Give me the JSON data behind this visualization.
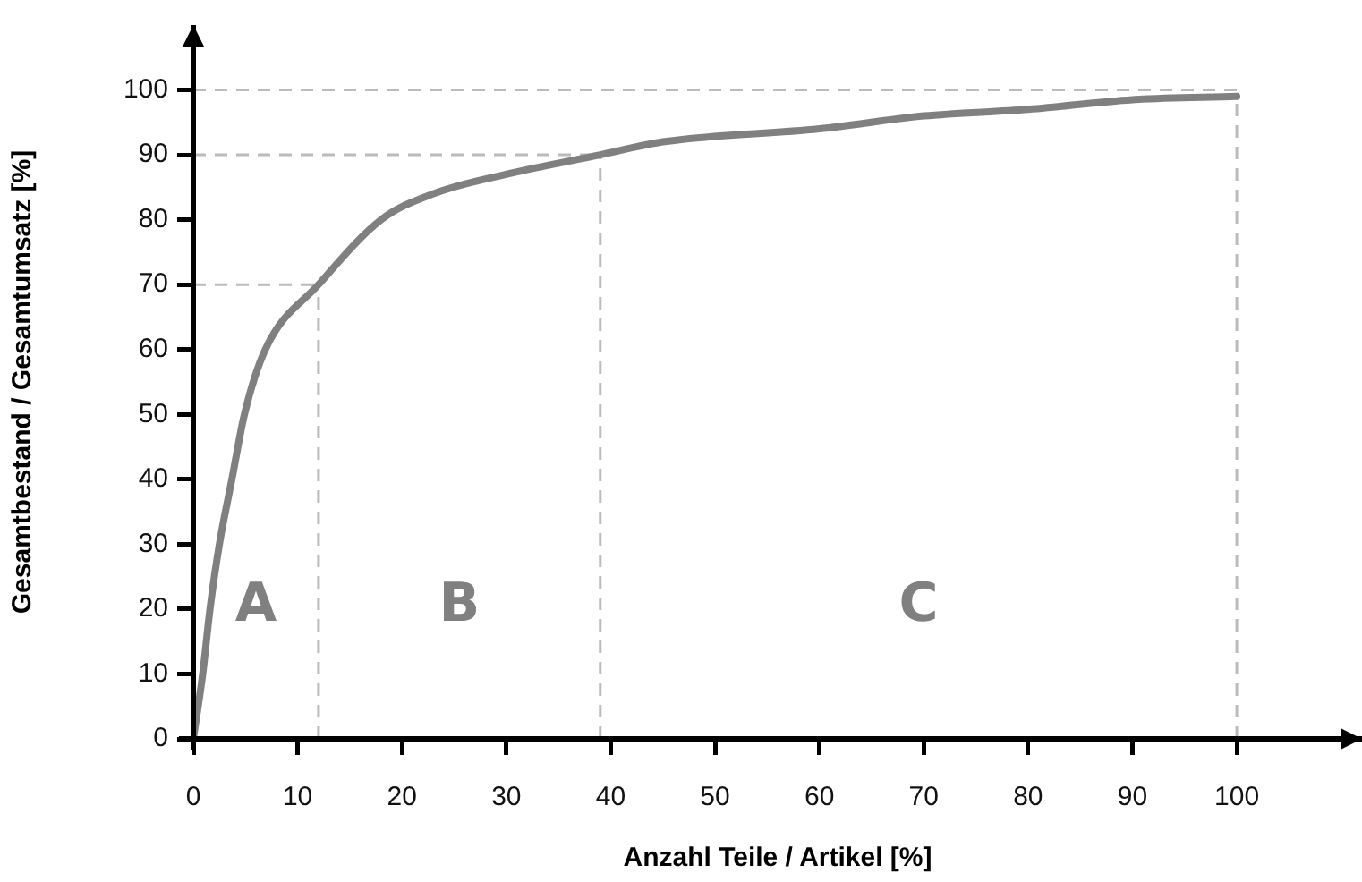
{
  "chart_data": {
    "type": "line",
    "xlabel": "Anzahl Teile / Artikel [%]",
    "ylabel": "Gesamtbestand / Gesamtumsatz [%]",
    "x": [
      0,
      0.9,
      1.6,
      2.5,
      3.7,
      4.9,
      6.9,
      12,
      18,
      23,
      30,
      39,
      45,
      60,
      70,
      80,
      90,
      100
    ],
    "series": [
      {
        "color": "#808080",
        "values": [
          0,
          10,
          20,
          30,
          40,
          50,
          60,
          70,
          80,
          84,
          87,
          90,
          92,
          94,
          96,
          97,
          98.5,
          99
        ]
      }
    ],
    "marker": "none",
    "line_style": "solid",
    "xlim": [
      0,
      112
    ],
    "ylim": [
      0,
      110
    ],
    "xticks": [
      0,
      10,
      20,
      30,
      40,
      50,
      60,
      70,
      80,
      90,
      100
    ],
    "yticks": [
      0,
      10,
      20,
      30,
      40,
      50,
      60,
      70,
      80,
      90,
      100
    ],
    "ref_lines": [
      {
        "axis": "x",
        "value": 12,
        "color": "#bbbbbb",
        "line_style": "dashed"
      },
      {
        "axis": "x",
        "value": 39,
        "color": "#bbbbbb",
        "line_style": "dashed"
      },
      {
        "axis": "x",
        "value": 100,
        "color": "#bbbbbb",
        "line_style": "dashed"
      },
      {
        "axis": "y",
        "value": 70,
        "color": "#bbbbbb",
        "line_style": "dashed"
      },
      {
        "axis": "y",
        "value": 90,
        "color": "#bbbbbb",
        "line_style": "dashed"
      },
      {
        "axis": "y",
        "value": 100,
        "color": "#bbbbbb",
        "line_style": "dashed"
      }
    ],
    "annotations": [
      "A",
      "B",
      "C"
    ]
  }
}
